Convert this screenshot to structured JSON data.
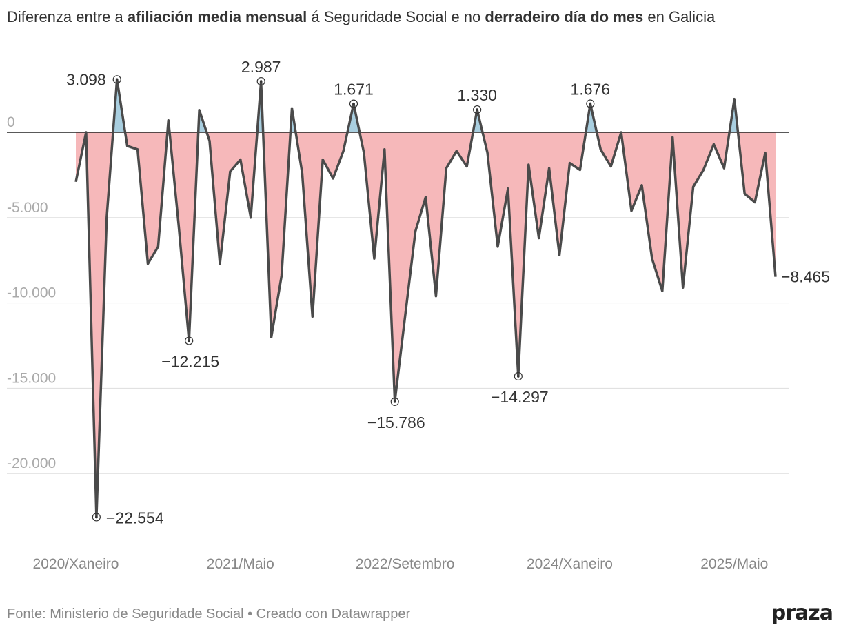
{
  "title": {
    "part1": "Diferenza entre a ",
    "bold1": "afiliación media mensual",
    "part2": " á Seguridade Social e no ",
    "bold2": "derradeiro día do mes",
    "part3": " en Galicia"
  },
  "footer": {
    "source": "Fonte: Ministerio de Seguridade Social",
    "separator": "•",
    "credit": "Creado con Datawrapper"
  },
  "logo": "praza",
  "colors": {
    "line": "#4a4a4a",
    "negative_fill": "#f6b8ba",
    "positive_fill": "#a9cfe0",
    "grid": "#dddddd",
    "zero_line": "#222222",
    "tick_text": "#aaaaaa"
  },
  "chart_data": {
    "type": "area",
    "title": "Diferenza entre a afiliación media mensual á Seguridade Social e no derradeiro día do mes en Galicia",
    "xlabel": "",
    "ylabel": "",
    "ylim": [
      -25000,
      5000
    ],
    "y_ticks": [
      0,
      -5000,
      -10000,
      -15000,
      -20000
    ],
    "y_tick_labels": [
      "0",
      "-5.000",
      "-10.000",
      "-15.000",
      "-20.000"
    ],
    "x_tick_labels": [
      {
        "label": "2020/Xaneiro",
        "index": 0
      },
      {
        "label": "2021/Maio",
        "index": 16
      },
      {
        "label": "2022/Setembro",
        "index": 32
      },
      {
        "label": "2024/Xaneiro",
        "index": 48
      },
      {
        "label": "2025/Maio",
        "index": 64
      }
    ],
    "values": [
      -2900,
      0,
      -22554,
      -5000,
      3098,
      -800,
      -1000,
      -7700,
      -6700,
      700,
      -5500,
      -12215,
      1300,
      -500,
      -7700,
      -2300,
      -1600,
      -5000,
      2987,
      -12000,
      -8400,
      1400,
      -2400,
      -10800,
      -1600,
      -2700,
      -1100,
      1671,
      -1200,
      -7400,
      -1000,
      -15786,
      -10800,
      -5800,
      -3800,
      -9600,
      -2100,
      -1100,
      -2000,
      1330,
      -1200,
      -6700,
      -3300,
      -14297,
      -1900,
      -6200,
      -2100,
      -7200,
      -1800,
      -2200,
      1676,
      -1000,
      -2000,
      0,
      -4600,
      -3100,
      -7400,
      -9300,
      -300,
      -9100,
      -3200,
      -2200,
      -700,
      -2100,
      1950,
      -3600,
      -4100,
      -1200,
      -8465
    ],
    "annotations": [
      {
        "index": 2,
        "value": -22554,
        "label": "−22.554"
      },
      {
        "index": 4,
        "value": 3098,
        "label": "3.098"
      },
      {
        "index": 11,
        "value": -12215,
        "label": "−12.215"
      },
      {
        "index": 18,
        "value": 2987,
        "label": "2.987"
      },
      {
        "index": 27,
        "value": 1671,
        "label": "1.671"
      },
      {
        "index": 31,
        "value": -15786,
        "label": "−15.786"
      },
      {
        "index": 39,
        "value": 1330,
        "label": "1.330"
      },
      {
        "index": 43,
        "value": -14297,
        "label": "−14.297"
      },
      {
        "index": 50,
        "value": 1676,
        "label": "1.676"
      },
      {
        "index": 68,
        "value": -8465,
        "label": "−8.465"
      }
    ]
  }
}
